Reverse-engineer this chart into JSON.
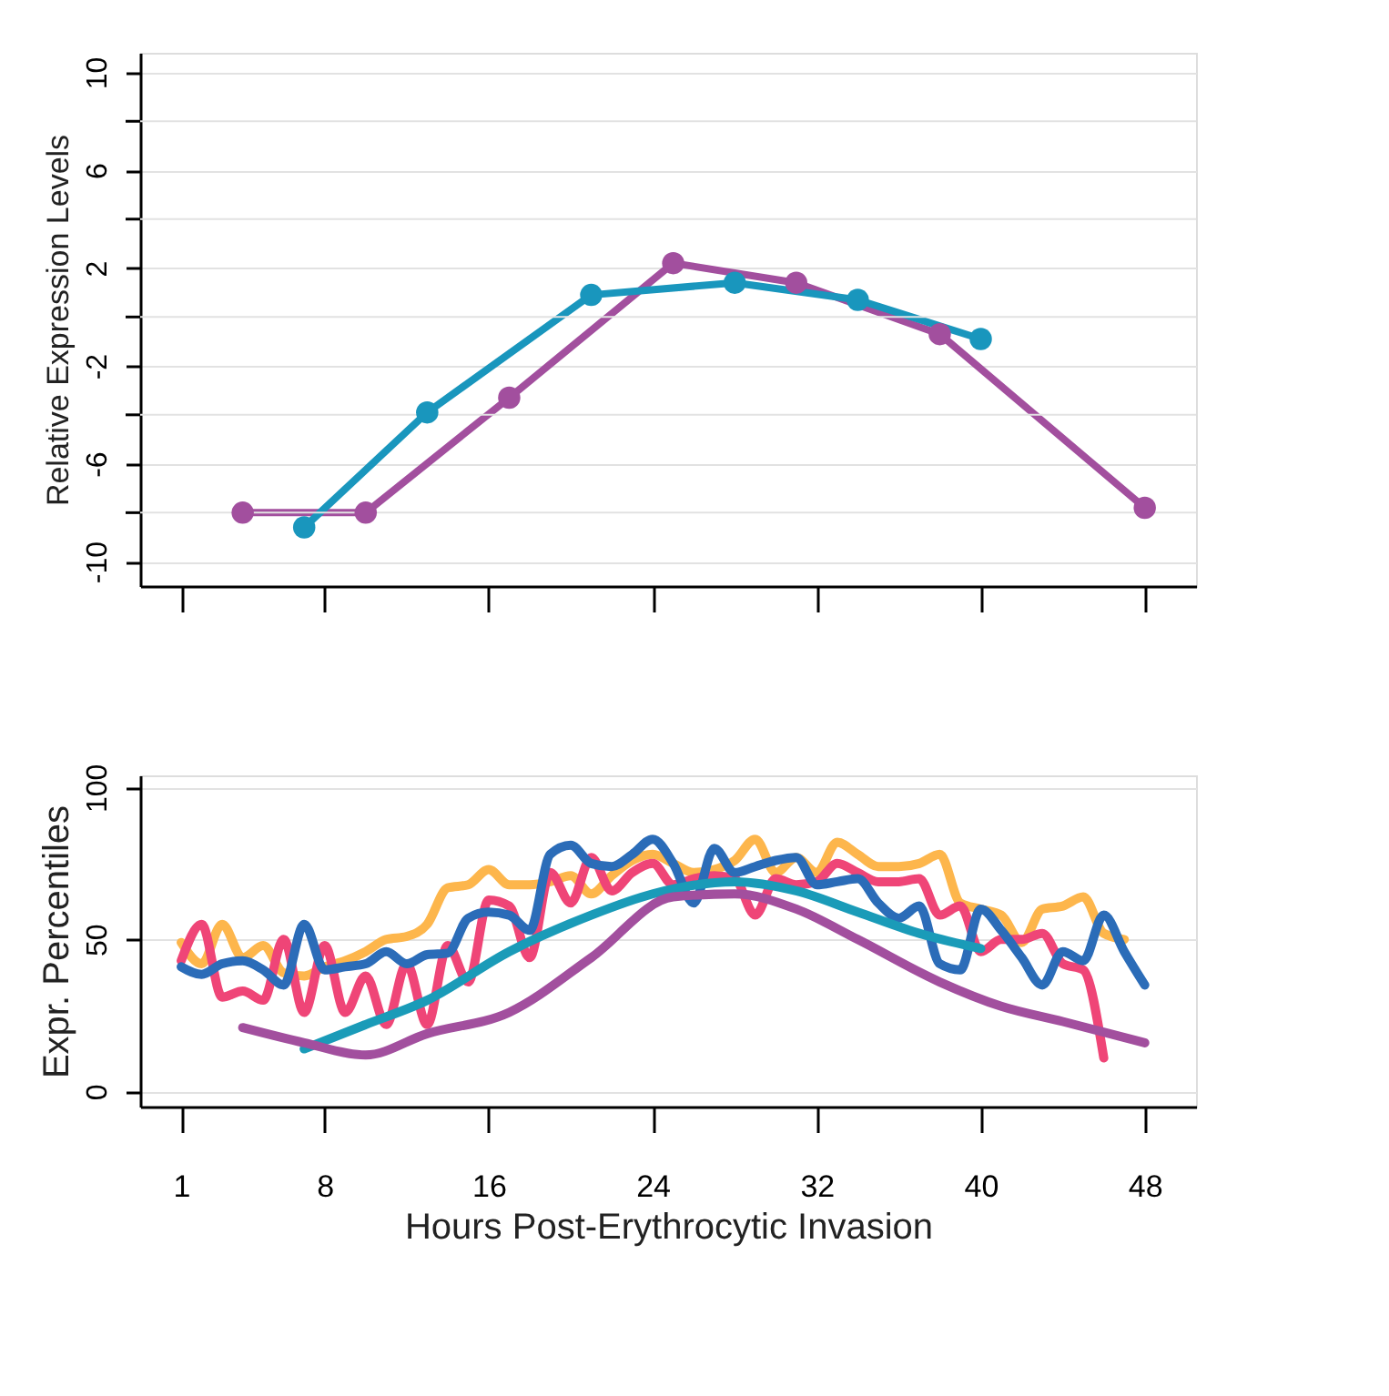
{
  "chart_data": [
    {
      "type": "line",
      "ylabel": "Relative Expression Levels",
      "xlim": [
        -1,
        50.5
      ],
      "ylim": [
        -11,
        10.8
      ],
      "xticks": [
        {
          "value": 1,
          "label": null
        },
        {
          "value": 8,
          "label": null
        },
        {
          "value": 16,
          "label": null
        },
        {
          "value": 24,
          "label": null
        },
        {
          "value": 32,
          "label": null
        },
        {
          "value": 40,
          "label": null
        },
        {
          "value": 48,
          "label": null
        }
      ],
      "yticks": [
        -10,
        {
          "value": -8,
          "label": null
        },
        -6,
        {
          "value": -4,
          "label": null
        },
        -2,
        {
          "value": 0,
          "label": null
        },
        2,
        {
          "value": 4,
          "label": null
        },
        6,
        {
          "value": 8,
          "label": null
        },
        10
      ],
      "tick_labels": "y",
      "grid": "y",
      "marker": "circle",
      "line_style": "solid",
      "series": [
        {
          "color": "#a24f9e",
          "x": [
            4,
            10,
            17,
            25,
            31,
            38,
            48
          ],
          "values": [
            -8.0,
            -8.0,
            -3.3,
            2.2,
            1.4,
            -0.7,
            -7.8
          ]
        },
        {
          "color": "#1996bd",
          "x": [
            7,
            13,
            21,
            28,
            34,
            40
          ],
          "values": [
            -8.6,
            -3.9,
            0.9,
            1.4,
            0.7,
            -0.9
          ]
        }
      ]
    },
    {
      "type": "line",
      "xlabel": "Hours Post-Erythrocytic Invasion",
      "ylabel": "Expr. Percentiles",
      "xlim": [
        -1,
        50.5
      ],
      "ylim": [
        -5,
        104
      ],
      "xticks": [
        1,
        8,
        16,
        24,
        32,
        40,
        48
      ],
      "yticks": [
        0,
        50,
        100
      ],
      "grid": "y",
      "marker": "none",
      "line_style": "solid",
      "series": [
        {
          "color": "#fdb64c",
          "x": [
            1,
            2,
            3,
            4,
            5,
            6,
            7,
            8,
            9,
            10,
            11,
            12,
            13,
            14,
            15,
            16,
            17,
            18,
            19,
            20,
            21,
            22,
            23,
            24,
            25,
            26,
            27,
            28,
            29,
            30,
            31,
            32,
            33,
            34,
            35,
            36,
            37,
            38,
            39,
            40,
            41,
            42,
            43,
            44,
            45,
            46,
            47
          ],
          "values": [
            49,
            42,
            55,
            44,
            48,
            39,
            38,
            41,
            43,
            46,
            50,
            51,
            55,
            67,
            68,
            73,
            68,
            68,
            69,
            71,
            65,
            71,
            76,
            78,
            75,
            72,
            73,
            76,
            83,
            72,
            77,
            72,
            82,
            78,
            74,
            74,
            75,
            78,
            62,
            60,
            58,
            49,
            60,
            61,
            64,
            52,
            50
          ]
        },
        {
          "color": "#ef4577",
          "x": [
            1,
            2,
            3,
            4,
            5,
            6,
            7,
            8,
            9,
            10,
            11,
            12,
            13,
            14,
            15,
            16,
            17,
            18,
            19,
            20,
            21,
            22,
            23,
            24,
            25,
            26,
            27,
            28,
            29,
            30,
            31,
            32,
            33,
            34,
            35,
            36,
            37,
            38,
            39,
            40,
            41,
            42,
            43,
            44,
            45,
            46
          ],
          "values": [
            43,
            55,
            31,
            33,
            30,
            50,
            26,
            48,
            26,
            38,
            22,
            42,
            22,
            48,
            36,
            63,
            61,
            44,
            72,
            62,
            77,
            66,
            72,
            75,
            68,
            70,
            71,
            70,
            58,
            70,
            68,
            69,
            75,
            72,
            69,
            69,
            70,
            58,
            61,
            46,
            50,
            50,
            52,
            42,
            40,
            11
          ]
        },
        {
          "color": "#2b6cb8",
          "x": [
            1,
            2,
            3,
            4,
            5,
            6,
            7,
            8,
            9,
            10,
            11,
            12,
            13,
            14,
            15,
            16,
            17,
            18,
            19,
            20,
            21,
            22,
            23,
            24,
            25,
            26,
            27,
            28,
            29,
            30,
            31,
            32,
            33,
            34,
            35,
            36,
            37,
            38,
            39,
            40,
            41,
            42,
            43,
            44,
            45,
            46,
            47,
            48
          ],
          "values": [
            41,
            38.5,
            42,
            43,
            40,
            35,
            55,
            40,
            41,
            42,
            46,
            42,
            45,
            45.5,
            57,
            59,
            58,
            53,
            78,
            81,
            75,
            74,
            78,
            83,
            75,
            62,
            80,
            72,
            74,
            76,
            77,
            68,
            69,
            70,
            62,
            57,
            61,
            42,
            40,
            60,
            53,
            44,
            35,
            46,
            43,
            58,
            46,
            35
          ]
        },
        {
          "color": "#1a9bb8",
          "x": [
            7,
            10,
            13,
            17,
            21,
            24,
            28,
            31,
            34,
            37,
            40
          ],
          "values": [
            14,
            22,
            30,
            46,
            58,
            65,
            69,
            66,
            59,
            52,
            47
          ]
        },
        {
          "color": "#a24f9e",
          "x": [
            4,
            7,
            10,
            13,
            17,
            21,
            25,
            28,
            31,
            34,
            38,
            41,
            44,
            48
          ],
          "values": [
            21,
            16,
            12,
            19,
            26,
            44,
            64,
            65,
            60,
            50,
            36,
            28,
            23,
            16
          ]
        }
      ]
    }
  ]
}
